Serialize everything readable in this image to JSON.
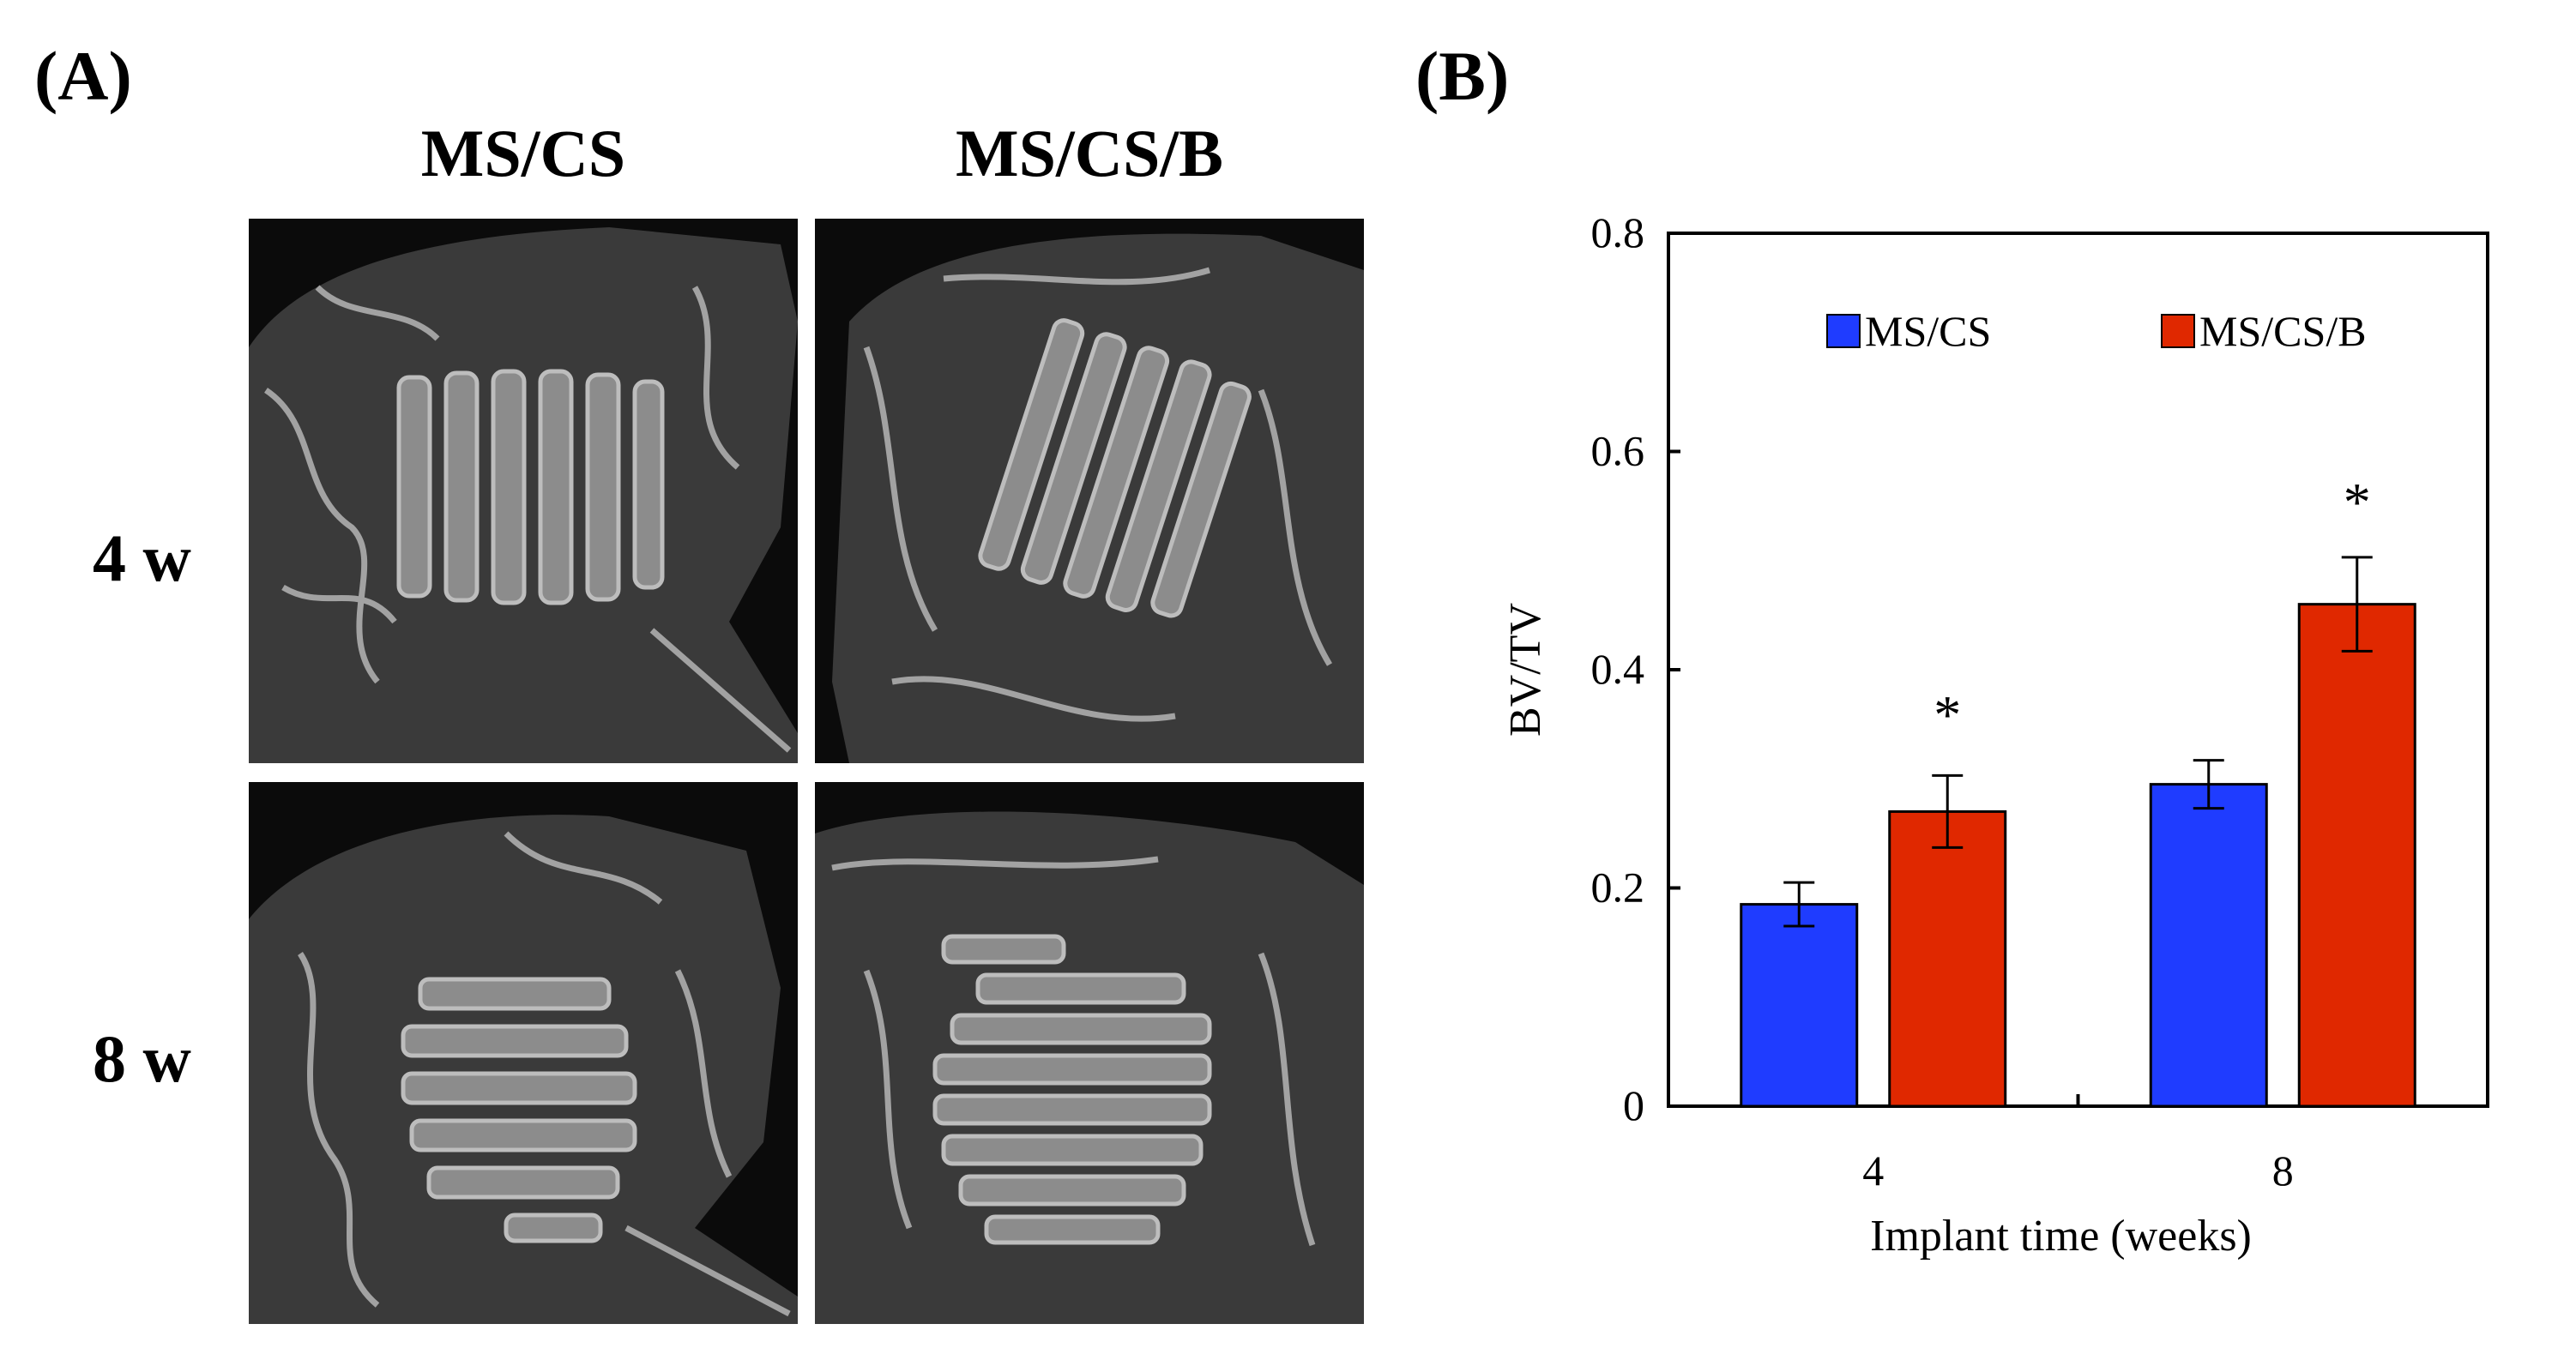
{
  "panel_a": {
    "label": "(A)",
    "columns": [
      "MS/CS",
      "MS/CS/B"
    ],
    "rows": [
      "4 w",
      "8 w"
    ]
  },
  "panel_b": {
    "label": "(B)"
  },
  "chart_data": {
    "type": "bar",
    "title": "",
    "xlabel": "Implant time (weeks)",
    "ylabel": "BV/TV",
    "categories": [
      "4",
      "8"
    ],
    "ylim": [
      0,
      0.8
    ],
    "yticks": [
      0,
      0.2,
      0.4,
      0.6,
      0.8
    ],
    "ytick_labels": [
      "0",
      "0.2",
      "0.4",
      "0.6",
      "0.8"
    ],
    "legend_position": "top",
    "series": [
      {
        "name": "MS/CS",
        "color": "#1f3cff",
        "values": [
          0.185,
          0.295
        ],
        "errors": [
          0.02,
          0.022
        ]
      },
      {
        "name": "MS/CS/B",
        "color": "#e02800",
        "values": [
          0.27,
          0.46
        ],
        "errors": [
          0.033,
          0.043
        ]
      }
    ],
    "annotations": [
      {
        "text": "*",
        "category": "4",
        "series": "MS/CS/B",
        "y": 0.37
      },
      {
        "text": "*",
        "category": "8",
        "series": "MS/CS/B",
        "y": 0.565
      }
    ]
  }
}
